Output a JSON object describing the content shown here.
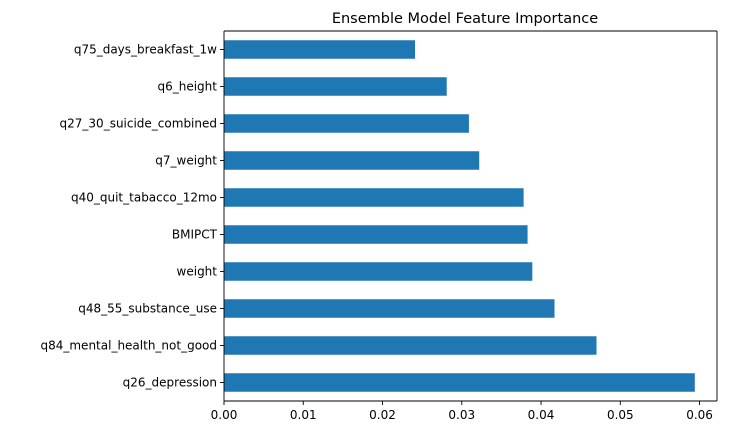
{
  "chart_data": {
    "type": "bar",
    "orientation": "horizontal",
    "title": "Ensemble Model Feature Importance",
    "xlabel": "",
    "ylabel": "",
    "categories": [
      "q26_depression",
      "q84_mental_health_not_good",
      "q48_55_substance_use",
      "weight",
      "BMIPCT",
      "q40_quit_tabacco_12mo",
      "q7_weight",
      "q27_30_suicide_combined",
      "q6_height",
      "q75_days_breakfast_1w"
    ],
    "values": [
      0.0594,
      0.047,
      0.0417,
      0.0389,
      0.0383,
      0.0378,
      0.0322,
      0.0309,
      0.0281,
      0.0241
    ],
    "xlim": [
      0.0,
      0.0622
    ],
    "xticks": [
      0.0,
      0.01,
      0.02,
      0.03,
      0.04,
      0.05,
      0.06
    ],
    "xtick_labels": [
      "0.00",
      "0.01",
      "0.02",
      "0.03",
      "0.04",
      "0.05",
      "0.06"
    ],
    "grid": false,
    "bar_color": "#1f77b4"
  }
}
